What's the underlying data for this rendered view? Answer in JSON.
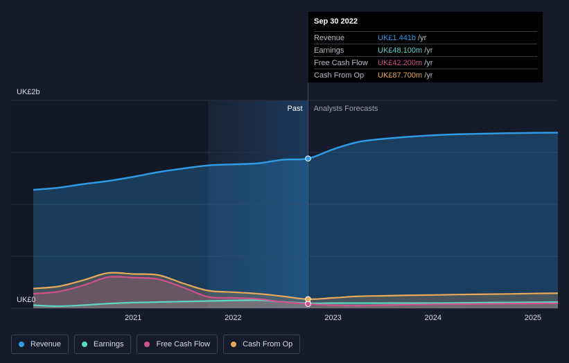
{
  "colors": {
    "background": "#151b2a",
    "revenue": "#2f9ae6",
    "earnings": "#5fd6c0",
    "free_cash_flow": "#d0508a",
    "cash_from_op": "#e8a95a",
    "past_shade": "#1a3350"
  },
  "tooltip": {
    "date": "Sep 30 2022",
    "rows": [
      {
        "label": "Revenue",
        "value": "UK£1.441b",
        "unit": "/yr",
        "color": "#2f9ae6"
      },
      {
        "label": "Earnings",
        "value": "UK£48.100m",
        "unit": "/yr",
        "color": "#5fd6c0"
      },
      {
        "label": "Free Cash Flow",
        "value": "UK£42.200m",
        "unit": "/yr",
        "color": "#d0508a"
      },
      {
        "label": "Cash From Op",
        "value": "UK£87.700m",
        "unit": "/yr",
        "color": "#e8a95a"
      }
    ]
  },
  "legend": [
    {
      "label": "Revenue",
      "color": "#2f9ae6"
    },
    {
      "label": "Earnings",
      "color": "#5fd6c0"
    },
    {
      "label": "Free Cash Flow",
      "color": "#d0508a"
    },
    {
      "label": "Cash From Op",
      "color": "#e8a95a"
    }
  ],
  "chart_data": {
    "type": "line",
    "y_top_label": "UK£2b",
    "y_bottom_label": "UK£0",
    "ylim": [
      0,
      2000
    ],
    "xlim": [
      2020.0,
      2025.25
    ],
    "x_ticks": [
      {
        "value": 2021.0,
        "label": "2021"
      },
      {
        "value": 2022.0,
        "label": "2022"
      },
      {
        "value": 2023.0,
        "label": "2023"
      },
      {
        "value": 2024.0,
        "label": "2024"
      },
      {
        "value": 2025.0,
        "label": "2025"
      }
    ],
    "past_label": "Past",
    "forecast_label": "Analysts Forecasts",
    "divider_x": 2022.75,
    "shade_start_x": 2021.75,
    "series": [
      {
        "name": "Revenue",
        "key": "revenue",
        "x": [
          2020.0,
          2020.25,
          2020.5,
          2020.75,
          2021.0,
          2021.25,
          2021.5,
          2021.75,
          2022.0,
          2022.25,
          2022.5,
          2022.75,
          2023.0,
          2023.25,
          2023.5,
          2023.75,
          2024.0,
          2024.25,
          2024.5,
          2024.75,
          2025.0,
          2025.25
        ],
        "y": [
          1140,
          1160,
          1195,
          1225,
          1265,
          1310,
          1345,
          1375,
          1385,
          1395,
          1430,
          1441,
          1530,
          1600,
          1630,
          1650,
          1665,
          1675,
          1680,
          1685,
          1688,
          1690
        ]
      },
      {
        "name": "Earnings",
        "key": "earnings",
        "x": [
          2020.0,
          2020.25,
          2020.5,
          2020.75,
          2021.0,
          2021.25,
          2021.5,
          2021.75,
          2022.0,
          2022.25,
          2022.5,
          2022.75,
          2023.0,
          2023.25,
          2023.5,
          2023.75,
          2024.0,
          2024.25,
          2024.5,
          2024.75,
          2025.0,
          2025.25
        ],
        "y": [
          30,
          20,
          30,
          45,
          55,
          60,
          65,
          70,
          75,
          78,
          62,
          48.1,
          50,
          50,
          50,
          50,
          50,
          52,
          54,
          56,
          58,
          60
        ]
      },
      {
        "name": "Free Cash Flow",
        "key": "free_cash_flow",
        "x": [
          2020.0,
          2020.25,
          2020.5,
          2020.75,
          2021.0,
          2021.25,
          2021.5,
          2021.75,
          2022.0,
          2022.25,
          2022.5,
          2022.75,
          2023.0,
          2023.25,
          2023.5,
          2023.75,
          2024.0,
          2024.25,
          2024.5,
          2024.75,
          2025.0,
          2025.25
        ],
        "y": [
          140,
          160,
          220,
          300,
          295,
          280,
          200,
          110,
          100,
          90,
          60,
          42.2,
          30,
          25,
          30,
          35,
          38,
          40,
          42,
          44,
          46,
          48
        ]
      },
      {
        "name": "Cash From Op",
        "key": "cash_from_op",
        "x": [
          2020.0,
          2020.25,
          2020.5,
          2020.75,
          2021.0,
          2021.25,
          2021.5,
          2021.75,
          2022.0,
          2022.25,
          2022.5,
          2022.75,
          2023.0,
          2023.25,
          2023.5,
          2023.75,
          2024.0,
          2024.25,
          2024.5,
          2024.75,
          2025.0,
          2025.25
        ],
        "y": [
          190,
          210,
          270,
          340,
          330,
          320,
          240,
          170,
          155,
          140,
          115,
          87.7,
          100,
          115,
          120,
          125,
          128,
          132,
          135,
          138,
          142,
          145
        ]
      }
    ],
    "highlight": {
      "x": 2022.75,
      "values": {
        "revenue": 1441,
        "earnings": 48.1,
        "free_cash_flow": 42.2,
        "cash_from_op": 87.7
      }
    }
  }
}
